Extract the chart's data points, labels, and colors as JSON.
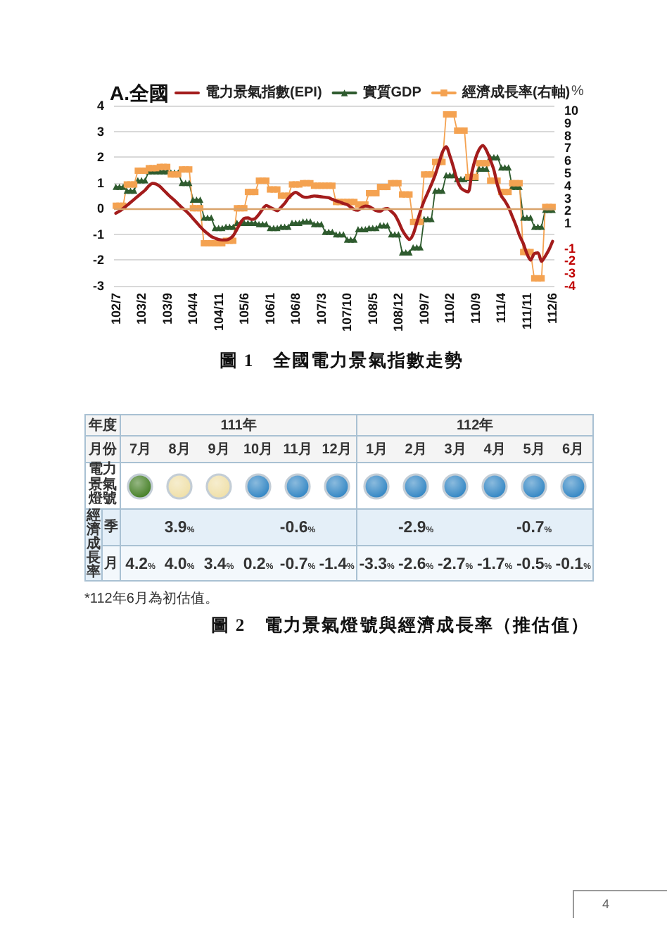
{
  "chart_data": [
    {
      "type": "line",
      "title": "A.全國",
      "y2label": "%",
      "categories": [
        "102/7",
        null,
        null,
        null,
        null,
        null,
        null,
        "103/2",
        null,
        null,
        null,
        null,
        null,
        null,
        "103/9",
        null,
        null,
        null,
        null,
        null,
        null,
        "104/4",
        null,
        null,
        null,
        null,
        null,
        null,
        "104/11",
        null,
        null,
        null,
        null,
        null,
        null,
        "105/6",
        null,
        null,
        null,
        null,
        null,
        null,
        "106/1",
        null,
        null,
        null,
        null,
        null,
        null,
        "106/8",
        null,
        null,
        null,
        null,
        null,
        null,
        "107/3",
        null,
        null,
        null,
        null,
        null,
        null,
        "107/10",
        null,
        null,
        null,
        null,
        null,
        null,
        "108/5",
        null,
        null,
        null,
        null,
        null,
        null,
        "108/12",
        null,
        null,
        null,
        null,
        null,
        null,
        "109/7",
        null,
        null,
        null,
        null,
        null,
        null,
        "110/2",
        null,
        null,
        null,
        null,
        null,
        null,
        "110/9",
        null,
        null,
        null,
        null,
        null,
        null,
        "111/4",
        null,
        null,
        null,
        null,
        null,
        null,
        "111/11",
        null,
        null,
        null,
        null,
        null,
        null,
        "112/6"
      ],
      "series": [
        {
          "name": "電力景氣指數(EPI)",
          "color": "#a31c1c",
          "values": [
            -0.18,
            -0.1,
            0.0,
            0.12,
            0.24,
            0.36,
            0.48,
            0.6,
            0.72,
            0.88,
            0.98,
            0.95,
            0.86,
            0.72,
            0.58,
            0.44,
            0.32,
            0.18,
            0.04,
            -0.08,
            -0.22,
            -0.38,
            -0.54,
            -0.7,
            -0.85,
            -0.97,
            -1.08,
            -1.15,
            -1.2,
            -1.22,
            -1.22,
            -1.17,
            -1.05,
            -0.8,
            -0.55,
            -0.38,
            -0.36,
            -0.42,
            -0.38,
            -0.22,
            -0.02,
            0.12,
            0.05,
            -0.02,
            -0.08,
            0.05,
            0.2,
            0.4,
            0.55,
            0.63,
            0.55,
            0.46,
            0.44,
            0.46,
            0.49,
            0.48,
            0.46,
            0.44,
            0.42,
            0.36,
            0.3,
            0.26,
            0.2,
            0.16,
            0.06,
            -0.04,
            -0.06,
            0.04,
            0.1,
            0.08,
            0.0,
            -0.08,
            -0.1,
            -0.02,
            0.0,
            -0.1,
            -0.24,
            -0.5,
            -0.82,
            -1.05,
            -1.2,
            -1.0,
            -0.55,
            -0.1,
            0.3,
            0.62,
            0.95,
            1.3,
            1.75,
            2.2,
            2.4,
            2.05,
            1.6,
            1.1,
            0.8,
            0.7,
            0.65,
            1.4,
            1.95,
            2.3,
            2.45,
            2.25,
            1.9,
            1.5,
            0.9,
            0.5,
            0.3,
            0.05,
            -0.3,
            -0.65,
            -1.05,
            -1.35,
            -1.75,
            -2.0,
            -1.75,
            -1.72,
            -2.05,
            -1.85,
            -1.6,
            -1.27
          ]
        },
        {
          "name": "實質GDP",
          "color": "#2e5b2e",
          "marker": "triangle",
          "values": [
            0.85,
            0.85,
            0.85,
            0.7,
            0.7,
            0.7,
            1.1,
            1.1,
            1.1,
            1.45,
            1.45,
            1.45,
            1.45,
            1.45,
            1.45,
            1.4,
            1.4,
            1.4,
            1.0,
            1.0,
            1.0,
            0.35,
            0.35,
            0.35,
            -0.35,
            -0.35,
            -0.35,
            -0.75,
            -0.75,
            -0.75,
            -0.7,
            -0.7,
            -0.7,
            -0.55,
            -0.55,
            -0.55,
            -0.55,
            -0.55,
            -0.55,
            -0.6,
            -0.6,
            -0.6,
            -0.75,
            -0.75,
            -0.75,
            -0.7,
            -0.7,
            -0.7,
            -0.55,
            -0.55,
            -0.55,
            -0.5,
            -0.5,
            -0.5,
            -0.6,
            -0.6,
            -0.6,
            -0.9,
            -0.9,
            -0.9,
            -1.0,
            -1.0,
            -1.0,
            -1.2,
            -1.2,
            -1.2,
            -0.8,
            -0.8,
            -0.8,
            -0.75,
            -0.75,
            -0.75,
            -0.65,
            -0.65,
            -0.65,
            -1.0,
            -1.0,
            -1.0,
            -1.7,
            -1.7,
            -1.7,
            -1.5,
            -1.5,
            -1.5,
            -0.4,
            -0.4,
            -0.4,
            0.7,
            0.7,
            0.7,
            1.3,
            1.3,
            1.3,
            1.15,
            1.15,
            1.15,
            1.2,
            1.2,
            1.2,
            1.55,
            1.55,
            1.55,
            2.0,
            2.0,
            2.0,
            1.6,
            1.6,
            1.6,
            0.85,
            0.85,
            0.85,
            -0.35,
            -0.35,
            -0.35,
            -0.7,
            -0.7,
            -0.7,
            -0.05,
            -0.05,
            -0.05
          ]
        },
        {
          "name": "經濟成長率(右軸)",
          "color": "#f4a251",
          "marker": "square",
          "axis": "y2",
          "values": [
            2.4,
            2.4,
            2.4,
            4.1,
            4.1,
            4.1,
            5.2,
            5.2,
            5.2,
            5.4,
            5.4,
            5.4,
            5.5,
            5.5,
            5.5,
            4.9,
            4.9,
            4.9,
            5.3,
            5.3,
            5.3,
            2.2,
            2.2,
            2.2,
            -0.6,
            -0.6,
            -0.6,
            -0.6,
            -0.6,
            -0.6,
            -0.4,
            -0.4,
            -0.4,
            2.2,
            2.2,
            2.2,
            3.5,
            3.5,
            3.5,
            4.4,
            4.4,
            4.4,
            3.7,
            3.7,
            3.7,
            3.2,
            3.2,
            3.2,
            4.1,
            4.1,
            4.1,
            4.2,
            4.2,
            4.2,
            4.0,
            4.0,
            4.0,
            4.0,
            4.0,
            4.0,
            2.7,
            2.7,
            2.7,
            2.7,
            2.7,
            2.7,
            2.5,
            2.5,
            2.5,
            3.4,
            3.4,
            3.4,
            3.9,
            3.9,
            3.9,
            4.2,
            4.2,
            4.2,
            3.3,
            3.3,
            3.3,
            1.1,
            1.1,
            1.1,
            4.9,
            4.9,
            4.9,
            5.9,
            5.9,
            5.9,
            9.7,
            9.7,
            9.7,
            8.4,
            8.4,
            8.4,
            4.7,
            4.7,
            4.7,
            5.8,
            5.8,
            5.8,
            4.4,
            4.4,
            4.4,
            3.5,
            3.5,
            3.5,
            4.2,
            4.2,
            4.2,
            -1.3,
            -1.3,
            -1.3,
            -3.4,
            -3.4,
            -3.4,
            2.3,
            2.3,
            2.3
          ]
        }
      ],
      "ylim": [
        -3,
        4
      ],
      "yticks": [
        -3,
        -2,
        -1,
        0,
        1,
        2,
        3,
        4
      ],
      "y2lim": [
        -4,
        10.4
      ],
      "y2ticks": [
        -4,
        -3,
        -2,
        -1,
        1,
        2,
        3,
        4,
        5,
        6,
        7,
        8,
        9,
        10
      ],
      "grid": "y",
      "legend": "top",
      "ref_lines": [
        {
          "axis": "y",
          "value": 0,
          "color": "#d9a36b"
        }
      ],
      "annotations": [
        "圖 1　全國電力景氣指數走勢"
      ]
    },
    {
      "type": "heatmap",
      "xlabel": "月份",
      "ylabel": "經濟成長率",
      "categories": [
        "7月",
        "8月",
        "9月",
        "10月",
        "11月",
        "12月",
        "1月",
        "2月",
        "3月",
        "4月",
        "5月",
        "6月"
      ],
      "y_categories": [
        "季",
        "月"
      ],
      "cells": [
        [
          null,
          3.9,
          null,
          null,
          -0.6,
          null,
          null,
          -2.9,
          null,
          null,
          -0.7,
          null
        ],
        [
          4.2,
          4.0,
          3.4,
          0.2,
          -0.7,
          -1.4,
          -3.3,
          -2.6,
          -2.7,
          -1.7,
          -0.5,
          -0.1
        ]
      ],
      "cell_labels": [
        [
          null,
          "3.9%",
          null,
          null,
          "-0.6%",
          null,
          null,
          "-2.9%",
          null,
          null,
          "-0.7%",
          null
        ],
        [
          "4.2%",
          "4.0%",
          "3.4%",
          "0.2%",
          "-0.7%",
          "-1.4%",
          "-3.3%",
          "-2.6%",
          "-2.7%",
          "-1.7%",
          "-0.5%",
          "-0.1%"
        ]
      ],
      "colors": [
        "#3e7b1e",
        "#efdfa6",
        "#efdfa6",
        "#2b82c2",
        "#2b82c2",
        "#2b82c2",
        "#2b82c2",
        "#2b82c2",
        "#2b82c2",
        "#2b82c2",
        "#2b82c2",
        "#2b82c2"
      ],
      "annotations": [
        "年度",
        "111年",
        "112年",
        "電力景氣燈號",
        "*112年6月為初估值。",
        "圖 2　電力景氣燈號與經濟成長率（推估值）",
        "4"
      ]
    }
  ]
}
